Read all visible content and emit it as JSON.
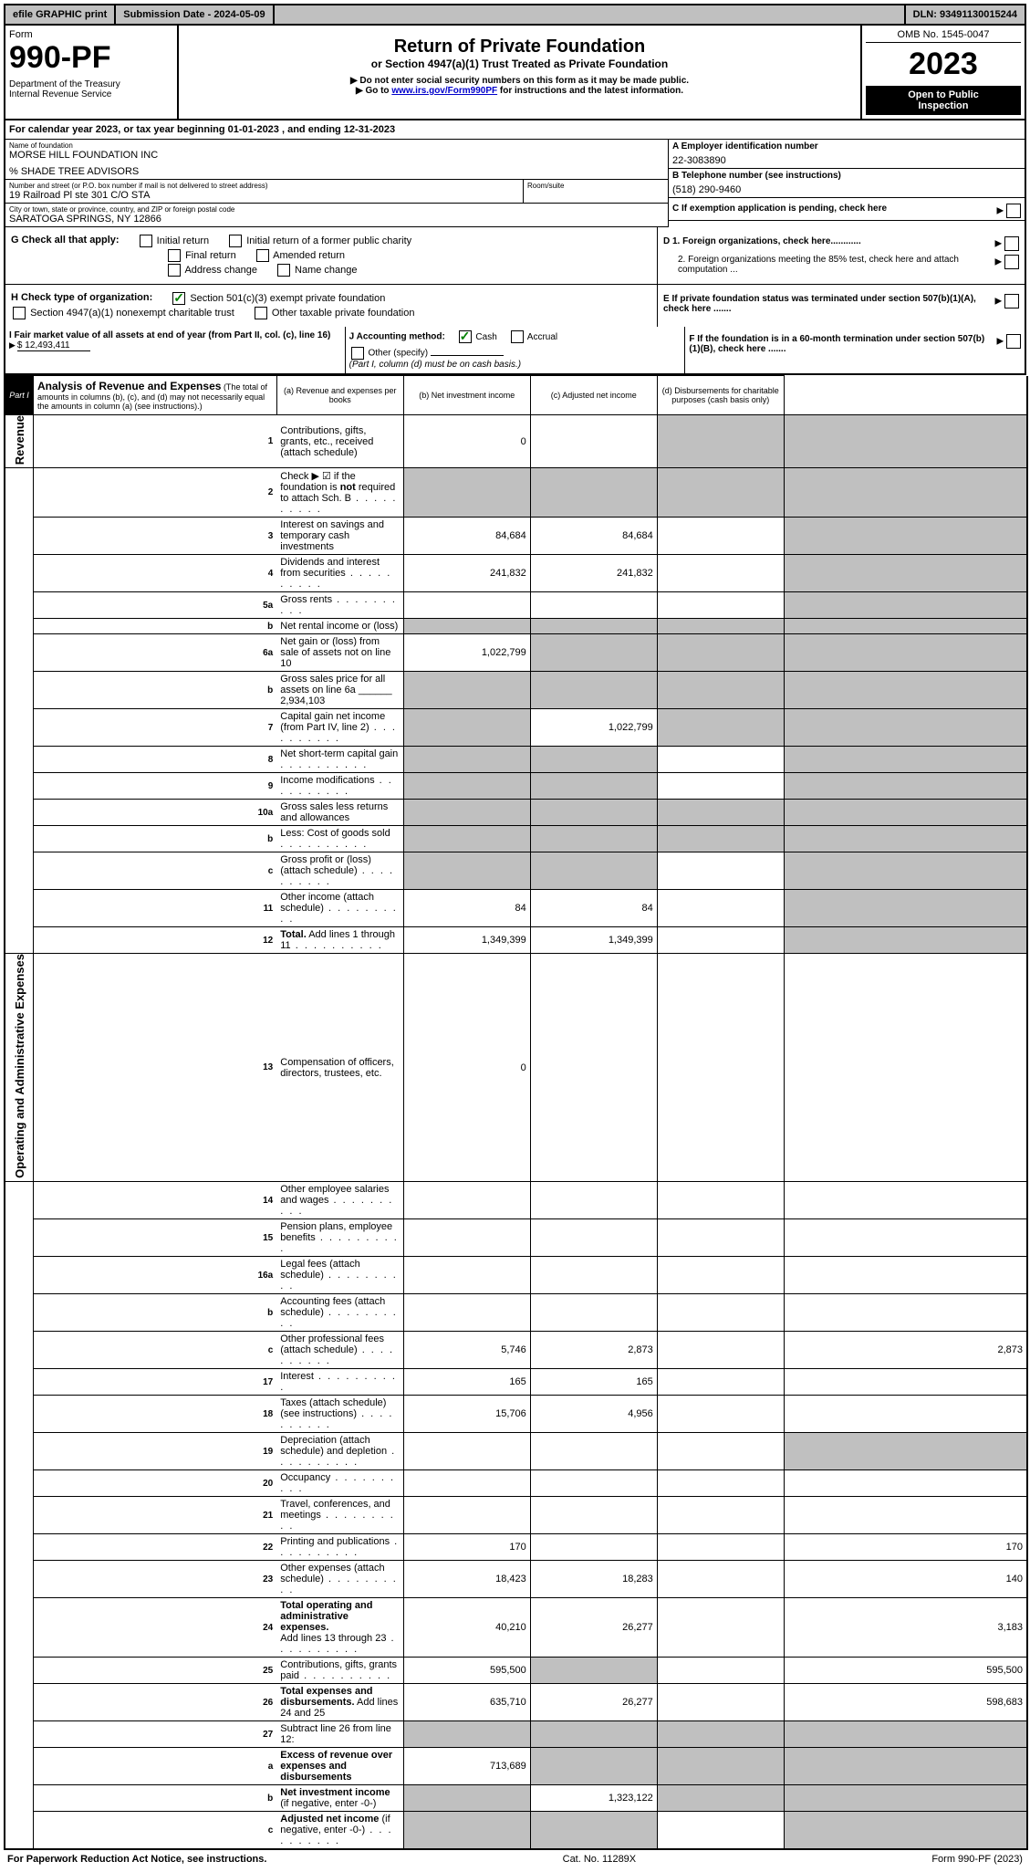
{
  "topbar": {
    "efile": "efile GRAPHIC print",
    "subdate": "Submission Date - 2024-05-09",
    "dln": "DLN: 93491130015244"
  },
  "header": {
    "form": "Form",
    "form_number": "990-PF",
    "dept": "Department of the Treasury\nInternal Revenue Service",
    "title": "Return of Private Foundation",
    "subtitle": "or Section 4947(a)(1) Trust Treated as Private Foundation",
    "instr1": "▶ Do not enter social security numbers on this form as it may be made public.",
    "instr2_prefix": "▶ Go to ",
    "instr2_link": "www.irs.gov/Form990PF",
    "instr2_suffix": " for instructions and the latest information.",
    "omb": "OMB No. 1545-0047",
    "year": "2023",
    "inspection": "Open to Public\nInspection"
  },
  "calyear": "For calendar year 2023, or tax year beginning 01-01-2023          , and ending 12-31-2023",
  "info": {
    "name_label": "Name of foundation",
    "name": "MORSE HILL FOUNDATION INC",
    "care_of": "% SHADE TREE ADVISORS",
    "addr_label": "Number and street (or P.O. box number if mail is not delivered to street address)",
    "addr": "19 Railroad Pl ste 301 C/O STA",
    "room_label": "Room/suite",
    "city_label": "City or town, state or province, country, and ZIP or foreign postal code",
    "city": "SARATOGA SPRINGS, NY  12866",
    "a_label": "A Employer identification number",
    "a_value": "22-3083890",
    "b_label": "B Telephone number (see instructions)",
    "b_value": "(518) 290-9460",
    "c_label": "C If exemption application is pending, check here",
    "d1_label": "D 1. Foreign organizations, check here............",
    "d2_label": "2. Foreign organizations meeting the 85% test, check here and attach computation ...",
    "e_label": "E  If private foundation status was terminated under section 507(b)(1)(A), check here .......",
    "f_label": "F  If the foundation is in a 60-month termination under section 507(b)(1)(B), check here .......",
    "g_label": "G Check all that apply:",
    "g_opts": [
      "Initial return",
      "Initial return of a former public charity",
      "Final return",
      "Amended return",
      "Address change",
      "Name change"
    ],
    "h_label": "H Check type of organization:",
    "h_opt1": "Section 501(c)(3) exempt private foundation",
    "h_opt2": "Section 4947(a)(1) nonexempt charitable trust",
    "h_opt3": "Other taxable private foundation",
    "i_label": "I Fair market value of all assets at end of year (from Part II, col. (c), line 16)",
    "i_value": "$  12,493,411",
    "j_label": "J Accounting method:",
    "j_opts": [
      "Cash",
      "Accrual",
      "Other (specify)"
    ],
    "j_note": "(Part I, column (d) must be on cash basis.)"
  },
  "part1": {
    "label": "Part I",
    "title": "Analysis of Revenue and Expenses",
    "title_note": "(The total of amounts in columns (b), (c), and (d) may not necessarily equal the amounts in column (a) (see instructions).)",
    "col_a": "(a)    Revenue and expenses per books",
    "col_b": "(b)   Net investment income",
    "col_c": "(c)  Adjusted net income",
    "col_d": "(d)  Disbursements for charitable purposes (cash basis only)"
  },
  "vert": {
    "revenue": "Revenue",
    "expenses": "Operating and Administrative Expenses"
  },
  "rows": [
    {
      "n": "1",
      "d": "shaded",
      "a": "0",
      "b": "",
      "c": "shaded"
    },
    {
      "n": "2",
      "d": "shaded",
      "a": "shaded",
      "b": "shaded",
      "c": "shaded",
      "dots": true
    },
    {
      "n": "3",
      "d": "shaded",
      "a": "84,684",
      "b": "84,684",
      "c": ""
    },
    {
      "n": "4",
      "d": "shaded",
      "a": "241,832",
      "b": "241,832",
      "c": "",
      "dots": true
    },
    {
      "n": "5a",
      "d": "shaded",
      "a": "",
      "b": "",
      "c": "",
      "dots": true
    },
    {
      "n": "b",
      "d": "shaded",
      "a": "shaded",
      "b": "shaded",
      "c": "shaded"
    },
    {
      "n": "6a",
      "d": "shaded",
      "a": "1,022,799",
      "b": "shaded",
      "c": "shaded"
    },
    {
      "n": "b",
      "d": "shaded",
      "a": "shaded",
      "b": "shaded",
      "c": "shaded"
    },
    {
      "n": "7",
      "d": "shaded",
      "a": "shaded",
      "b": "1,022,799",
      "c": "shaded",
      "dots": true
    },
    {
      "n": "8",
      "d": "shaded",
      "a": "shaded",
      "b": "shaded",
      "c": "",
      "dots": true
    },
    {
      "n": "9",
      "d": "shaded",
      "a": "shaded",
      "b": "shaded",
      "c": "",
      "dots": true
    },
    {
      "n": "10a",
      "d": "shaded",
      "a": "shaded",
      "b": "shaded",
      "c": "shaded"
    },
    {
      "n": "b",
      "d": "shaded",
      "a": "shaded",
      "b": "shaded",
      "c": "shaded",
      "dots": true
    },
    {
      "n": "c",
      "d": "shaded",
      "a": "shaded",
      "b": "shaded",
      "c": "",
      "dots": true
    },
    {
      "n": "11",
      "d": "shaded",
      "a": "84",
      "b": "84",
      "c": "",
      "dots": true
    },
    {
      "n": "12",
      "d": "shaded",
      "a": "1,349,399",
      "b": "1,349,399",
      "c": "",
      "dots": true,
      "bold": true
    }
  ],
  "exp_rows": [
    {
      "n": "13",
      "d": "",
      "a": "0",
      "b": "",
      "c": ""
    },
    {
      "n": "14",
      "d": "",
      "a": "",
      "b": "",
      "c": "",
      "dots": true
    },
    {
      "n": "15",
      "d": "",
      "a": "",
      "b": "",
      "c": "",
      "dots": true
    },
    {
      "n": "16a",
      "d": "",
      "a": "",
      "b": "",
      "c": "",
      "dots": true
    },
    {
      "n": "b",
      "d": "",
      "a": "",
      "b": "",
      "c": "",
      "dots": true
    },
    {
      "n": "c",
      "d": "2,873",
      "a": "5,746",
      "b": "2,873",
      "c": "",
      "dots": true
    },
    {
      "n": "17",
      "d": "",
      "a": "165",
      "b": "165",
      "c": "",
      "dots": true
    },
    {
      "n": "18",
      "d": "",
      "a": "15,706",
      "b": "4,956",
      "c": "",
      "dots": true
    },
    {
      "n": "19",
      "d": "shaded",
      "a": "",
      "b": "",
      "c": "",
      "dots": true
    },
    {
      "n": "20",
      "d": "",
      "a": "",
      "b": "",
      "c": "",
      "dots": true
    },
    {
      "n": "21",
      "d": "",
      "a": "",
      "b": "",
      "c": "",
      "dots": true
    },
    {
      "n": "22",
      "d": "170",
      "a": "170",
      "b": "",
      "c": "",
      "dots": true
    },
    {
      "n": "23",
      "d": "140",
      "a": "18,423",
      "b": "18,283",
      "c": "",
      "dots": true
    },
    {
      "n": "24",
      "d": "3,183",
      "a": "40,210",
      "b": "26,277",
      "c": "",
      "dots": true,
      "bold": true
    },
    {
      "n": "25",
      "d": "595,500",
      "a": "595,500",
      "b": "shaded",
      "c": "",
      "dots": true
    },
    {
      "n": "26",
      "d": "598,683",
      "a": "635,710",
      "b": "26,277",
      "c": "",
      "bold": true
    }
  ],
  "final_rows": [
    {
      "n": "27",
      "d": "shaded",
      "a": "shaded",
      "b": "shaded",
      "c": "shaded"
    },
    {
      "n": "a",
      "d": "shaded",
      "a": "713,689",
      "b": "shaded",
      "c": "shaded",
      "bold": true
    },
    {
      "n": "b",
      "d": "shaded",
      "a": "shaded",
      "b": "1,323,122",
      "c": "shaded",
      "bold": true
    },
    {
      "n": "c",
      "d": "shaded",
      "a": "shaded",
      "b": "shaded",
      "c": "",
      "bold": true,
      "dots": true
    }
  ],
  "footer": {
    "left": "For Paperwork Reduction Act Notice, see instructions.",
    "center": "Cat. No. 11289X",
    "right": "Form 990-PF (2023)"
  }
}
